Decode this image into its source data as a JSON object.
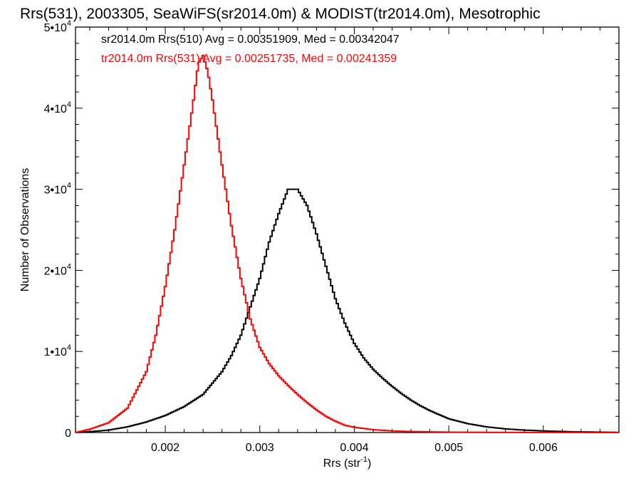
{
  "chart_data": {
    "type": "line",
    "title": "Rrs(531), 2003305, SeaWiFS(sr2014.0m) & MODIST(tr2014.0m), Mesotrophic",
    "xlabel": "Rrs (str",
    "xlabel_sup": "-1",
    "xlabel_suffix": ")",
    "ylabel": "Number of Observations",
    "xlim": [
      0.00105,
      0.0068
    ],
    "ylim": [
      0,
      50000
    ],
    "x_ticks": [
      {
        "value": 0.002,
        "label": "0.002"
      },
      {
        "value": 0.003,
        "label": "0.003"
      },
      {
        "value": 0.004,
        "label": "0.004"
      },
      {
        "value": 0.005,
        "label": "0.005"
      },
      {
        "value": 0.006,
        "label": "0.006"
      }
    ],
    "y_ticks": [
      {
        "value": 0,
        "mant": "0",
        "exp": ""
      },
      {
        "value": 10000,
        "mant": "1•10",
        "exp": "4"
      },
      {
        "value": 20000,
        "mant": "2•10",
        "exp": "4"
      },
      {
        "value": 30000,
        "mant": "3•10",
        "exp": "4"
      },
      {
        "value": 40000,
        "mant": "4•10",
        "exp": "4"
      },
      {
        "value": 50000,
        "mant": "5•10",
        "exp": "4"
      }
    ],
    "grid": false,
    "series": [
      {
        "name": "sr2014.0m Rrs(510) Avg = 0.00351909, Med = 0.00342047",
        "color": "#000000",
        "points": [
          [
            0.00105,
            0
          ],
          [
            0.0012,
            100
          ],
          [
            0.0014,
            300
          ],
          [
            0.0016,
            700
          ],
          [
            0.0018,
            1300
          ],
          [
            0.002,
            2100
          ],
          [
            0.0022,
            3200
          ],
          [
            0.0024,
            4700
          ],
          [
            0.0026,
            7500
          ],
          [
            0.0027,
            9500
          ],
          [
            0.0028,
            12000
          ],
          [
            0.0029,
            15500
          ],
          [
            0.003,
            19000
          ],
          [
            0.0031,
            23500
          ],
          [
            0.0032,
            27000
          ],
          [
            0.0033,
            30000
          ],
          [
            0.0034,
            30000
          ],
          [
            0.0035,
            28000
          ],
          [
            0.0036,
            24500
          ],
          [
            0.0037,
            20500
          ],
          [
            0.0038,
            16500
          ],
          [
            0.0039,
            13500
          ],
          [
            0.004,
            11000
          ],
          [
            0.0041,
            9200
          ],
          [
            0.0042,
            7800
          ],
          [
            0.0043,
            6700
          ],
          [
            0.0044,
            5700
          ],
          [
            0.0045,
            4800
          ],
          [
            0.0046,
            4000
          ],
          [
            0.0047,
            3300
          ],
          [
            0.0048,
            2700
          ],
          [
            0.005,
            1700
          ],
          [
            0.0052,
            1100
          ],
          [
            0.0054,
            700
          ],
          [
            0.0056,
            450
          ],
          [
            0.0058,
            300
          ],
          [
            0.006,
            200
          ],
          [
            0.0063,
            100
          ],
          [
            0.0066,
            50
          ],
          [
            0.0068,
            20
          ]
        ]
      },
      {
        "name": "tr2014.0m Rrs(531) Avg = 0.00251735, Med = 0.00241359",
        "color": "#ff0000",
        "points": [
          [
            0.00105,
            0
          ],
          [
            0.0012,
            400
          ],
          [
            0.0014,
            1200
          ],
          [
            0.0016,
            3000
          ],
          [
            0.0018,
            7500
          ],
          [
            0.0019,
            12000
          ],
          [
            0.002,
            18000
          ],
          [
            0.0021,
            25000
          ],
          [
            0.0022,
            33000
          ],
          [
            0.0023,
            41000
          ],
          [
            0.00235,
            45500
          ],
          [
            0.0024,
            46500
          ],
          [
            0.00245,
            44500
          ],
          [
            0.0025,
            41000
          ],
          [
            0.0026,
            33000
          ],
          [
            0.0027,
            25500
          ],
          [
            0.0028,
            19000
          ],
          [
            0.0029,
            14000
          ],
          [
            0.003,
            10500
          ],
          [
            0.0031,
            8500
          ],
          [
            0.0032,
            7000
          ],
          [
            0.0033,
            5800
          ],
          [
            0.0034,
            4700
          ],
          [
            0.0035,
            3700
          ],
          [
            0.0036,
            2800
          ],
          [
            0.0037,
            2000
          ],
          [
            0.0038,
            1400
          ],
          [
            0.0039,
            900
          ],
          [
            0.004,
            650
          ],
          [
            0.0042,
            350
          ],
          [
            0.0044,
            200
          ],
          [
            0.0046,
            120
          ],
          [
            0.005,
            50
          ],
          [
            0.0055,
            20
          ],
          [
            0.0068,
            0
          ]
        ]
      }
    ]
  }
}
